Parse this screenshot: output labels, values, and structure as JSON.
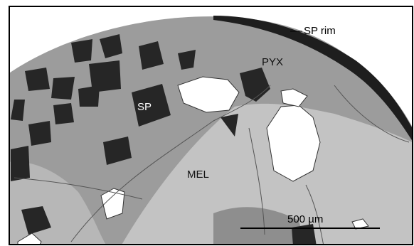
{
  "labels": {
    "sp_rim": "SP rim",
    "pyx": "PYX",
    "sp": "SP",
    "mel": "MEL"
  },
  "scale_bar": {
    "label": "500 µm"
  }
}
